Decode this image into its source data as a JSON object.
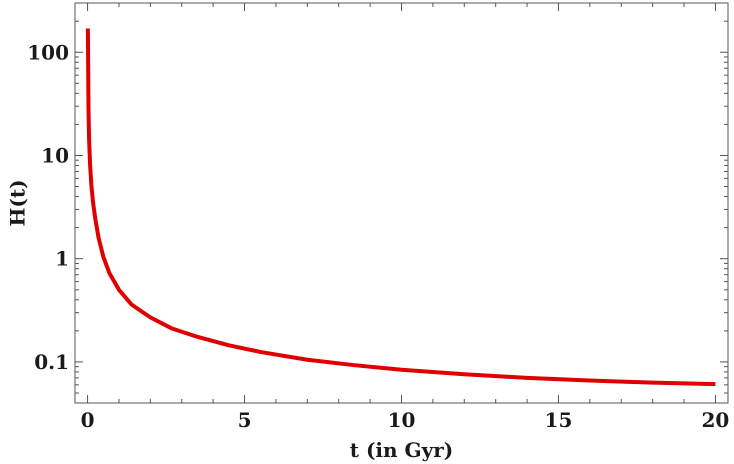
{
  "chart_data": {
    "type": "line",
    "title": "",
    "xlabel": "t (in Gyr)",
    "ylabel": "H(t)",
    "xlim": [
      -0.4,
      20.4
    ],
    "ylim": [
      0.04,
      300
    ],
    "yscale": "log",
    "grid": false,
    "legend": "none",
    "x_ticks": [
      0,
      5,
      10,
      15,
      20
    ],
    "x_tick_labels": [
      "0",
      "5",
      "10",
      "15",
      "20"
    ],
    "y_ticks": [
      0.1,
      1,
      10,
      100
    ],
    "y_tick_labels": [
      "0.1",
      "1",
      "10",
      "100"
    ],
    "series": [
      {
        "color": "#e00000",
        "x": [
          0.01,
          0.02,
          0.03,
          0.05,
          0.08,
          0.12,
          0.18,
          0.25,
          0.35,
          0.5,
          0.7,
          1.0,
          1.4,
          2.0,
          2.7,
          3.5,
          4.5,
          5.5,
          7.0,
          8.5,
          10.0,
          12.0,
          14.0,
          16.0,
          18.0,
          20.0
        ],
        "y": [
          170,
          70,
          28,
          14,
          8.2,
          5.2,
          3.4,
          2.4,
          1.6,
          1.05,
          0.72,
          0.5,
          0.36,
          0.27,
          0.21,
          0.175,
          0.145,
          0.125,
          0.105,
          0.093,
          0.084,
          0.076,
          0.07,
          0.066,
          0.063,
          0.061
        ]
      }
    ]
  }
}
